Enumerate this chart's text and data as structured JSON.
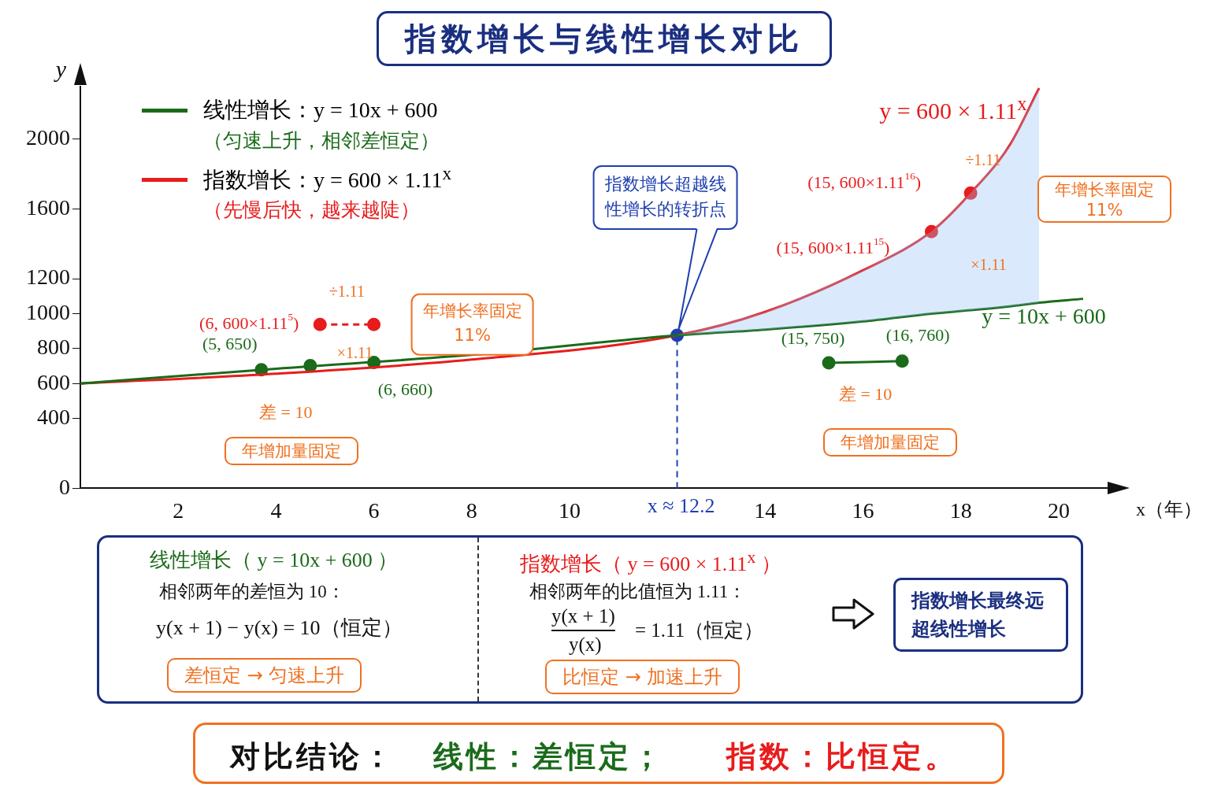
{
  "chart_data": {
    "type": "line",
    "title": "指数增长与线性增长对比",
    "xlabel": "x（年）",
    "ylabel": "y",
    "xlim": [
      0,
      21
    ],
    "xticks": [
      2,
      4,
      6,
      8,
      10,
      14,
      16,
      18,
      20
    ],
    "ylim": [
      0,
      2300
    ],
    "yticks": [
      0,
      400,
      600,
      800,
      1000,
      1200,
      1600,
      2000
    ],
    "grid": false,
    "legend": "top left",
    "marker": "none",
    "line_style": "solid",
    "series": [
      {
        "name": "线性增长：y = 10x + 600",
        "color": "#1a6b1a",
        "x": [
          0,
          4,
          8,
          12.2,
          14,
          16,
          17.4,
          18.2,
          19,
          19.6,
          20.5
        ],
        "values": [
          600,
          685,
          764,
          876,
          909,
          956,
          1000,
          1020,
          1042,
          1063,
          1085
        ]
      },
      {
        "name": "指数增长：y = 600 × 1.11$^{x}$",
        "color": "#e81c1c",
        "x": [
          0,
          4,
          8,
          12.2,
          14,
          16,
          17.4,
          18.2,
          19,
          19.6
        ],
        "values": [
          600,
          656,
          737,
          876,
          1010,
          1248,
          1470,
          1690,
          1965,
          2291
        ],
        "lower": [
          null,
          null,
          null,
          876,
          909,
          956,
          1000,
          1020,
          1042,
          1063
        ],
        "upper": [
          null,
          null,
          null,
          876,
          1010,
          1248,
          1470,
          1690,
          1965,
          2291
        ]
      },
      {
        "type": "scatter",
        "color": "#1a6b1a",
        "marker": "circle",
        "x": [
          3.7,
          4.7,
          6.0
        ],
        "values": [
          679,
          702,
          721
        ]
      },
      {
        "type": "line",
        "color": "#1a6b1a",
        "marker": "circle",
        "x": [
          15.3,
          16.8
        ],
        "values": [
          718,
          728
        ]
      },
      {
        "type": "line",
        "color": "#e81c1c",
        "marker": "circle",
        "line_style": "dashed",
        "x": [
          4.9,
          6.0
        ],
        "values": [
          938,
          938
        ]
      },
      {
        "type": "scatter",
        "color": "#e81c1c",
        "marker": "circle",
        "x": [
          17.4,
          18.2
        ],
        "values": [
          1470,
          1690
        ]
      },
      {
        "type": "scatter",
        "color": "#1f3fb0",
        "marker": "circle",
        "x": [
          12.2
        ],
        "values": [
          876
        ]
      }
    ],
    "ref_lines": [
      {
        "axis": "x",
        "value": 12.2,
        "label": "x ≈ 12.2",
        "color": "#1f3fb0",
        "line_style": "dashed"
      }
    ],
    "annotations": [
      "（匀速上升，相邻差恒定）",
      "（先慢后快，越来越陡）",
      "y = 600 × 1.11$^{x}$",
      "y = 10x + 600",
      {
        "text": "指数增长超越线性增长的转折点",
        "x": 12.2,
        "y": 876
      },
      {
        "text": "(5, 650)",
        "x": 3.7,
        "y": 679
      },
      {
        "text": "(6, 660)",
        "x": 6.0,
        "y": 721
      },
      {
        "text": "(15, 750)",
        "x": 15.3,
        "y": 718
      },
      {
        "text": "(16, 760)",
        "x": 16.8,
        "y": 728
      },
      {
        "text": "(6, 600×1.11$^{5}$)",
        "x": 4.9,
        "y": 938
      },
      {
        "text": "(15, 600×1.11$^{16}$)",
        "x": 18.2,
        "y": 1690
      },
      {
        "text": "(15, 600×1.11$^{15}$)",
        "x": 17.4,
        "y": 1470
      },
      {
        "text": "÷1.11",
        "x": 5.45,
        "y": 938
      },
      {
        "text": "×1.11",
        "x": 5.45,
        "y": 938
      },
      "÷1.11",
      "×1.11",
      {
        "text": "差 = 10",
        "x": 4.2,
        "y": 690
      },
      {
        "text": "差 = 10",
        "x": 16.05,
        "y": 723
      },
      "年增加量固定",
      "年增加量固定",
      {
        "text": "年增长率固定\n11%",
        "x": 6.0,
        "y": 938
      },
      "年增长率固定\n11%",
      "线性增长（ y = 10x + 600 ）",
      "相邻两年的差恒为 10：",
      "y(x + 1) − y(x) = 10（恒定）",
      "差恒定 → 匀速上升",
      "指数增长（ y = 600 × 1.11$^{x}$ ）",
      "相邻两年的比值恒为 1.11：",
      "y(x + 1)",
      "y(x)",
      "= 1.11（恒定）",
      "比恒定 → 加速上升",
      "指数增长最终远超线性增长",
      "对比结论：",
      "线性：差恒定；",
      "指数：比恒定。"
    ]
  }
}
